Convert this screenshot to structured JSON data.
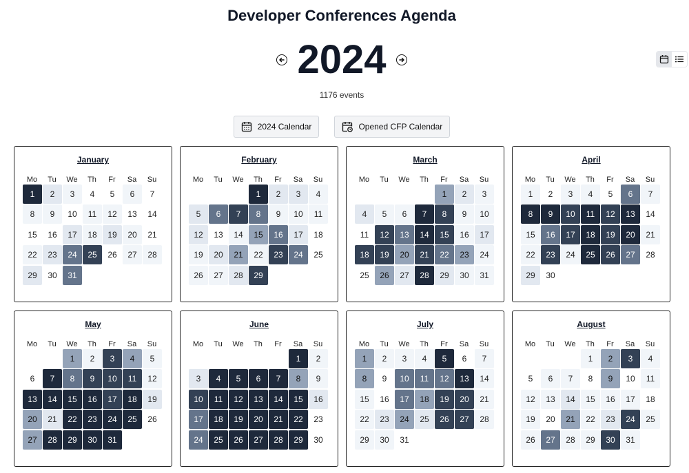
{
  "header": {
    "title": "Developer Conferences Agenda",
    "year": "2024",
    "event_count": "1176 events",
    "prev_icon": "arrow-left-circle-icon",
    "next_icon": "arrow-right-circle-icon"
  },
  "view_toggle": {
    "calendar_icon": "calendar-icon",
    "list_icon": "list-icon",
    "active": "calendar"
  },
  "buttons": {
    "calendar_label": "2024 Calendar",
    "cfp_label": "Opened CFP Calendar"
  },
  "weekdays": [
    "Mo",
    "Tu",
    "We",
    "Th",
    "Fr",
    "Sa",
    "Su"
  ],
  "months": [
    {
      "name": "January",
      "start": 0,
      "days": 31,
      "levels": [
        6,
        2,
        1,
        0,
        0,
        1,
        0,
        1,
        1,
        0,
        1,
        1,
        0,
        0,
        0,
        0,
        2,
        1,
        2,
        1,
        0,
        1,
        2,
        4,
        5,
        0,
        1,
        1,
        2,
        0,
        4
      ]
    },
    {
      "name": "February",
      "start": 3,
      "days": 29,
      "levels": [
        6,
        2,
        2,
        1,
        2,
        4,
        5,
        4,
        1,
        1,
        1,
        2,
        0,
        1,
        3,
        4,
        2,
        0,
        1,
        2,
        3,
        1,
        5,
        4,
        0,
        1,
        1,
        2,
        5
      ]
    },
    {
      "name": "March",
      "start": 4,
      "days": 31,
      "levels": [
        3,
        2,
        1,
        2,
        1,
        1,
        6,
        5,
        1,
        1,
        0,
        5,
        4,
        6,
        5,
        1,
        2,
        5,
        5,
        3,
        5,
        4,
        3,
        1,
        0,
        3,
        2,
        6,
        2,
        1,
        1
      ]
    },
    {
      "name": "April",
      "start": 0,
      "days": 30,
      "levels": [
        1,
        0,
        1,
        1,
        0,
        4,
        1,
        6,
        6,
        5,
        6,
        5,
        6,
        0,
        1,
        4,
        5,
        6,
        5,
        6,
        1,
        1,
        5,
        1,
        6,
        5,
        4,
        0,
        2,
        0
      ]
    },
    {
      "name": "May",
      "start": 2,
      "days": 31,
      "levels": [
        3,
        1,
        5,
        3,
        1,
        0,
        6,
        4,
        5,
        5,
        5,
        1,
        6,
        6,
        6,
        6,
        5,
        6,
        2,
        3,
        2,
        6,
        6,
        6,
        6,
        0,
        3,
        6,
        6,
        6,
        6
      ]
    },
    {
      "name": "June",
      "start": 5,
      "days": 30,
      "levels": [
        6,
        1,
        2,
        6,
        6,
        6,
        6,
        3,
        1,
        5,
        6,
        6,
        6,
        6,
        6,
        2,
        4,
        6,
        6,
        6,
        6,
        6,
        0,
        4,
        6,
        6,
        6,
        6,
        6,
        0
      ]
    },
    {
      "name": "July",
      "start": 0,
      "days": 31,
      "levels": [
        3,
        1,
        1,
        1,
        6,
        0,
        1,
        3,
        0,
        4,
        4,
        4,
        6,
        1,
        1,
        0,
        4,
        3,
        5,
        5,
        1,
        1,
        2,
        3,
        2,
        5,
        5,
        1,
        1,
        1,
        0
      ]
    },
    {
      "name": "August",
      "start": 3,
      "days": 31,
      "levels": [
        1,
        3,
        5,
        1,
        0,
        1,
        1,
        0,
        3,
        0,
        1,
        1,
        1,
        2,
        1,
        1,
        1,
        0,
        1,
        0,
        3,
        1,
        2,
        5,
        1,
        1,
        4,
        1,
        1,
        5,
        1
      ]
    }
  ]
}
